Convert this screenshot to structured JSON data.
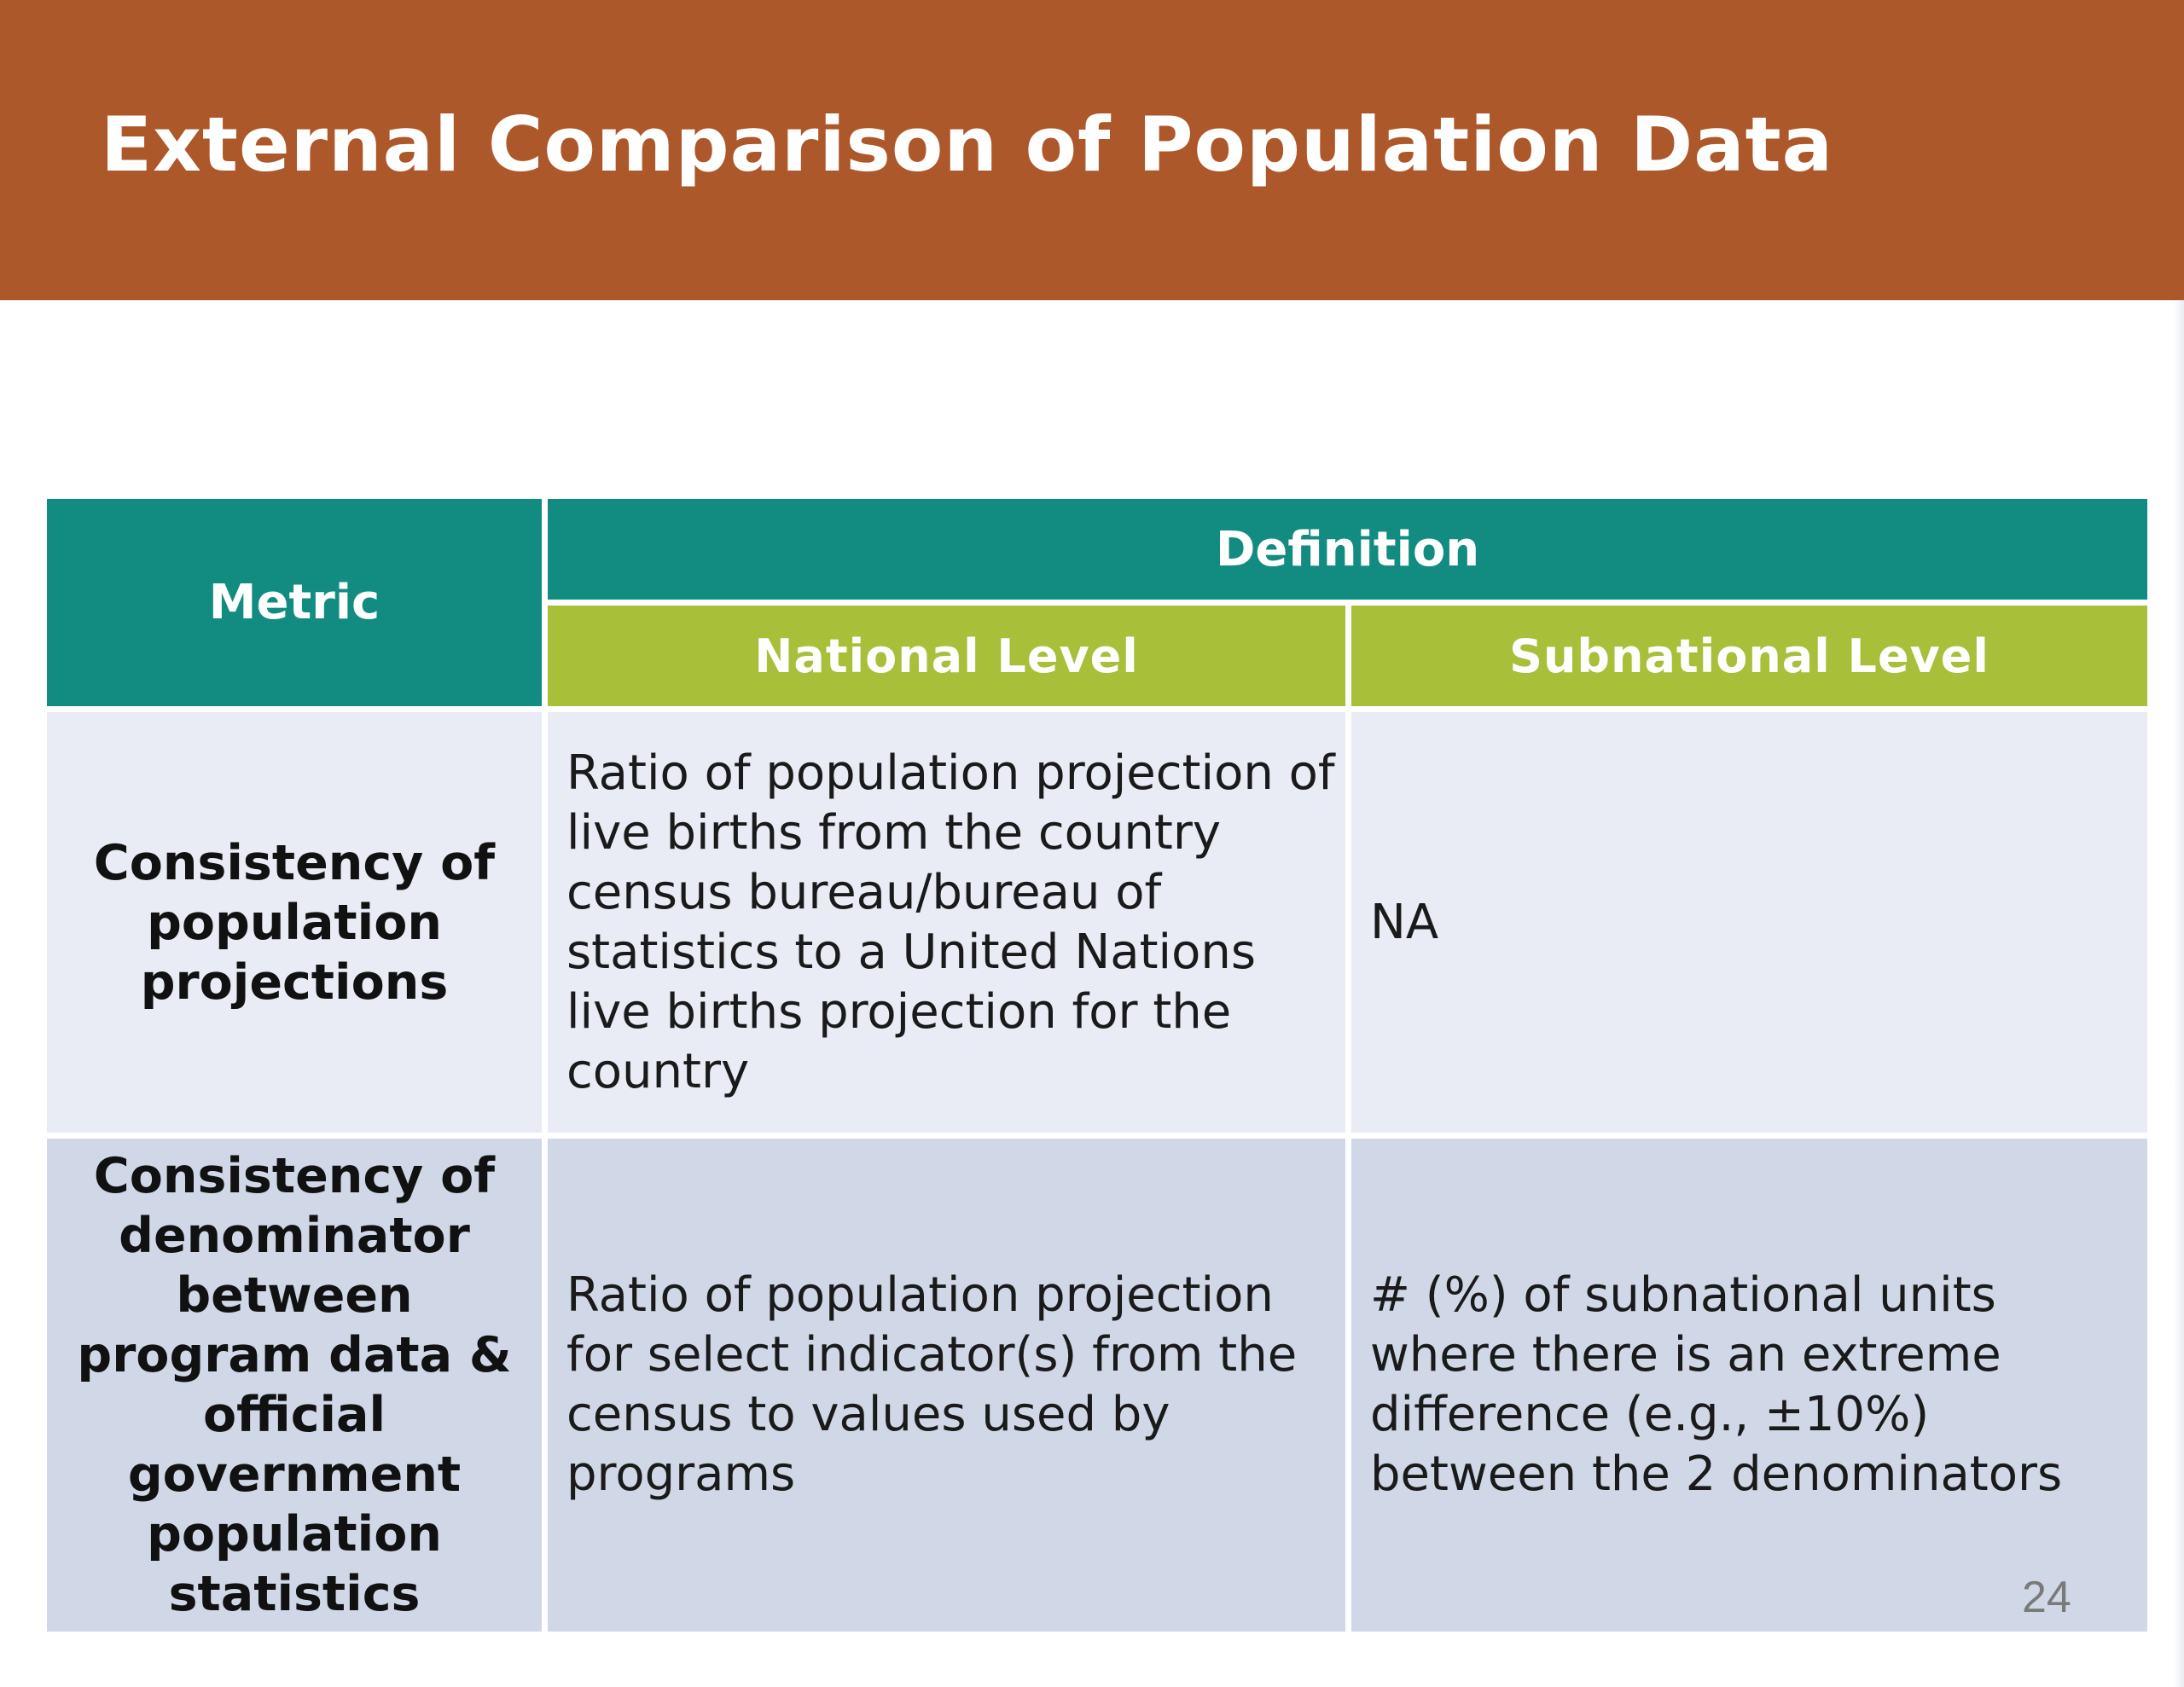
{
  "slide": {
    "title": "External Comparison of Population Data",
    "page_number": "24"
  },
  "colors": {
    "title_bar": "#AD582A",
    "header_teal": "#128C81",
    "header_green": "#A8BF3A",
    "row_light": "#E9ECF4",
    "row_dark": "#D0D8E7"
  },
  "table": {
    "headers": {
      "metric": "Metric",
      "definition": "Definition",
      "national": "National Level",
      "subnational": "Subnational Level"
    },
    "rows": [
      {
        "metric": "Consistency of population projections",
        "national": "Ratio of population projection of live births from the country census bureau/bureau of statistics to a United Nations live births projection for the country",
        "subnational": "NA"
      },
      {
        "metric": "Consistency of denominator between program data & official government population statistics",
        "national": "Ratio of population projection for select indicator(s) from the census to values used by programs",
        "subnational": "# (%) of subnational units where there is an extreme difference (e.g., ±10%) between the 2 denominators"
      }
    ]
  }
}
